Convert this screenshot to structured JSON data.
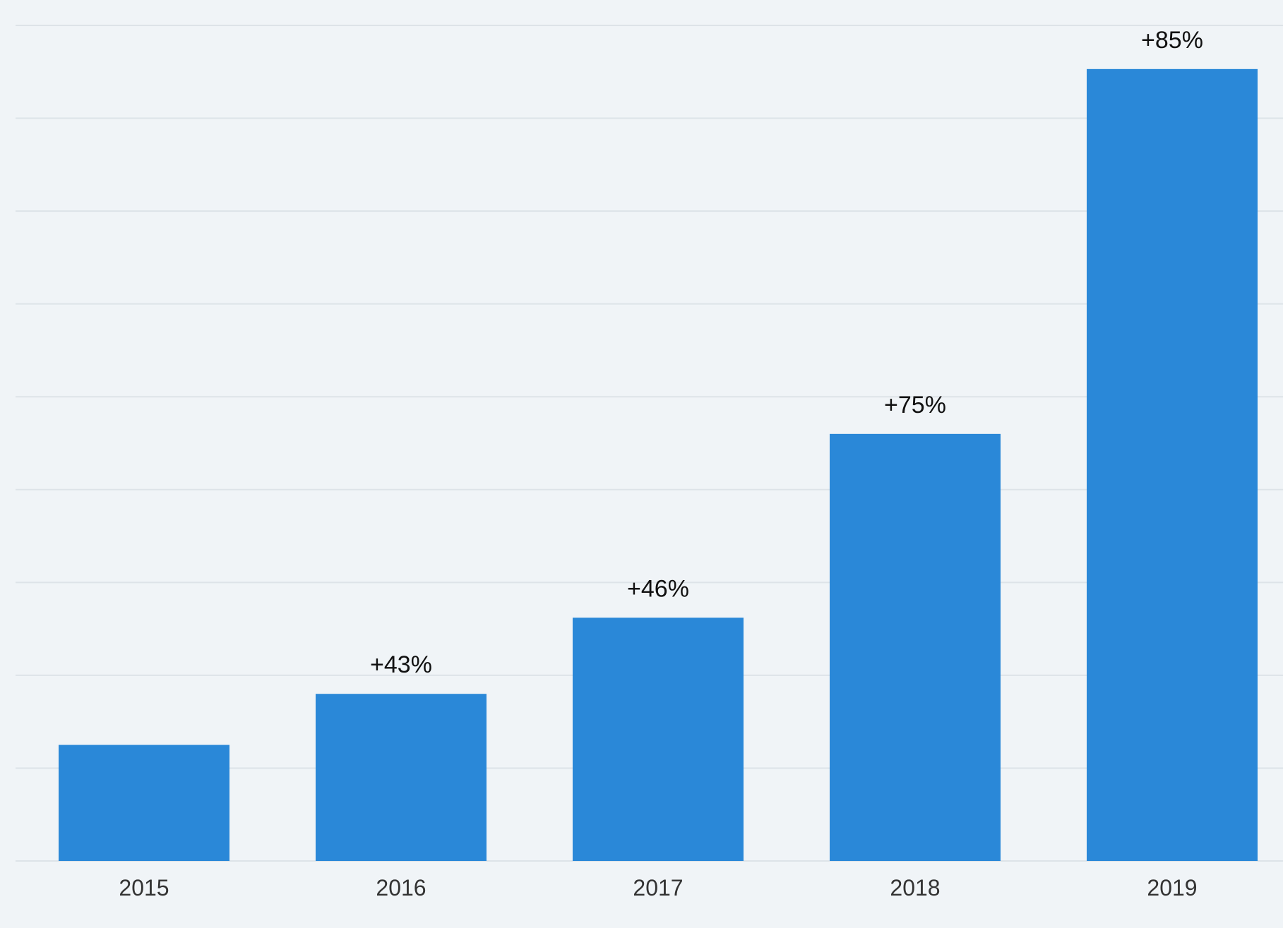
{
  "chart_data": {
    "type": "bar",
    "categories": [
      "2015",
      "2016",
      "2017",
      "2018",
      "2019"
    ],
    "values": [
      1.25,
      1.8,
      2.62,
      4.6,
      8.53
    ],
    "data_labels": [
      "",
      "+43%",
      "+46%",
      "+75%",
      "+85%"
    ],
    "ylim": [
      0,
      9
    ],
    "grid": true,
    "title": "",
    "xlabel": "",
    "ylabel": "",
    "bar_color": "#2a88d8",
    "gridline_color": "#dde3e8",
    "background_color": "#f0f4f7"
  }
}
